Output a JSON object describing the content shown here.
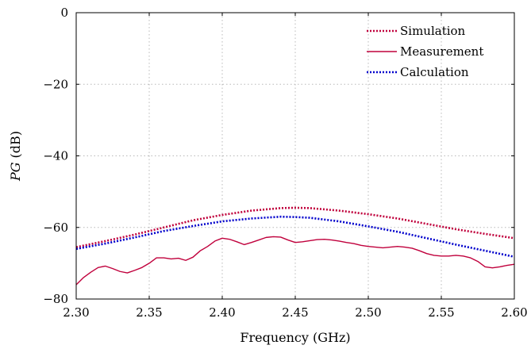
{
  "chart_data": {
    "type": "line",
    "xlabel": "Frequency (GHz)",
    "ylabel_italic": "PG",
    "ylabel_unit": "(dB)",
    "xlim": [
      2.3,
      2.6
    ],
    "ylim": [
      -80,
      0
    ],
    "xticks": [
      2.3,
      2.35,
      2.4,
      2.45,
      2.5,
      2.55,
      2.6
    ],
    "xtick_labels": [
      "2.30",
      "2.35",
      "2.40",
      "2.45",
      "2.50",
      "2.55",
      "2.60"
    ],
    "yticks": [
      0,
      -20,
      -40,
      -60,
      -80
    ],
    "ytick_labels": [
      "0",
      "−20",
      "−40",
      "−60",
      "−80"
    ],
    "grid": true,
    "legend_position": "top-right",
    "series": [
      {
        "name": "Simulation",
        "color": "#c0003c",
        "style": "dotted",
        "x": [
          2.3,
          2.32,
          2.34,
          2.36,
          2.38,
          2.4,
          2.42,
          2.44,
          2.45,
          2.46,
          2.48,
          2.5,
          2.52,
          2.54,
          2.56,
          2.58,
          2.6
        ],
        "y": [
          -65.5,
          -63.8,
          -62.0,
          -60.0,
          -58.0,
          -56.5,
          -55.3,
          -54.6,
          -54.5,
          -54.6,
          -55.3,
          -56.3,
          -57.5,
          -59.0,
          -60.5,
          -61.8,
          -63.0
        ]
      },
      {
        "name": "Measurement",
        "color": "#c0003c",
        "style": "solid",
        "x": [
          2.3,
          2.305,
          2.31,
          2.315,
          2.32,
          2.325,
          2.33,
          2.335,
          2.34,
          2.345,
          2.35,
          2.355,
          2.36,
          2.365,
          2.37,
          2.375,
          2.38,
          2.385,
          2.39,
          2.395,
          2.4,
          2.405,
          2.41,
          2.415,
          2.42,
          2.425,
          2.43,
          2.435,
          2.44,
          2.445,
          2.45,
          2.455,
          2.46,
          2.465,
          2.47,
          2.475,
          2.48,
          2.485,
          2.49,
          2.495,
          2.5,
          2.505,
          2.51,
          2.515,
          2.52,
          2.525,
          2.53,
          2.535,
          2.54,
          2.545,
          2.55,
          2.555,
          2.56,
          2.565,
          2.57,
          2.575,
          2.58,
          2.585,
          2.59,
          2.595,
          2.6
        ],
        "y": [
          -76.0,
          -74.0,
          -72.5,
          -71.2,
          -70.8,
          -71.5,
          -72.3,
          -72.7,
          -72.0,
          -71.2,
          -70.0,
          -68.5,
          -68.5,
          -68.8,
          -68.6,
          -69.2,
          -68.3,
          -66.5,
          -65.3,
          -63.8,
          -63.0,
          -63.3,
          -64.0,
          -64.8,
          -64.2,
          -63.5,
          -62.8,
          -62.6,
          -62.7,
          -63.5,
          -64.2,
          -64.0,
          -63.7,
          -63.4,
          -63.3,
          -63.5,
          -63.8,
          -64.2,
          -64.5,
          -65.0,
          -65.3,
          -65.5,
          -65.7,
          -65.5,
          -65.3,
          -65.5,
          -65.8,
          -66.5,
          -67.3,
          -67.8,
          -68.0,
          -68.0,
          -67.8,
          -68.0,
          -68.5,
          -69.5,
          -71.0,
          -71.3,
          -71.0,
          -70.6,
          -70.3
        ]
      },
      {
        "name": "Calculation",
        "color": "#0000cc",
        "style": "dotted",
        "x": [
          2.3,
          2.32,
          2.34,
          2.36,
          2.38,
          2.4,
          2.42,
          2.44,
          2.45,
          2.46,
          2.48,
          2.5,
          2.52,
          2.54,
          2.56,
          2.58,
          2.6
        ],
        "y": [
          -66.0,
          -64.5,
          -62.8,
          -61.0,
          -59.6,
          -58.3,
          -57.5,
          -57.0,
          -57.1,
          -57.3,
          -58.3,
          -59.7,
          -61.2,
          -63.0,
          -64.8,
          -66.5,
          -68.2
        ]
      }
    ]
  }
}
